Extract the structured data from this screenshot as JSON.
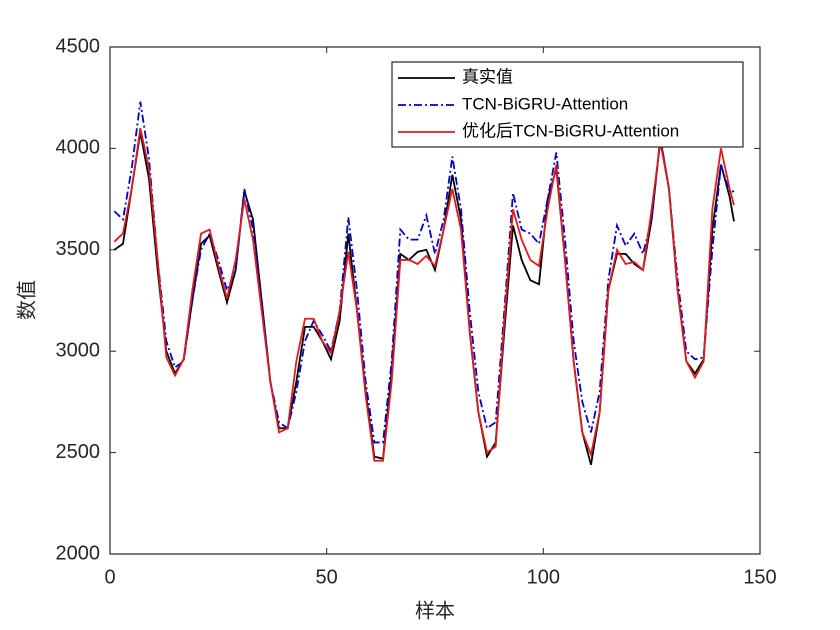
{
  "chart_data": {
    "type": "line",
    "x_label": "样本",
    "y_label": "数值",
    "x": [
      1,
      3,
      5,
      7,
      9,
      11,
      13,
      15,
      17,
      19,
      21,
      23,
      25,
      27,
      29,
      31,
      33,
      35,
      37,
      39,
      41,
      43,
      45,
      47,
      49,
      51,
      53,
      55,
      57,
      59,
      61,
      63,
      65,
      67,
      69,
      71,
      73,
      75,
      77,
      79,
      81,
      83,
      85,
      87,
      89,
      91,
      93,
      95,
      97,
      99,
      101,
      103,
      105,
      107,
      109,
      111,
      113,
      115,
      117,
      119,
      121,
      123,
      125,
      127,
      129,
      131,
      133,
      135,
      137,
      139,
      141,
      143,
      144
    ],
    "series": [
      {
        "name": "真实值",
        "color": "#000000",
        "dash": "none",
        "values": [
          3500,
          3530,
          3800,
          4080,
          3850,
          3400,
          3000,
          2890,
          2960,
          3250,
          3530,
          3570,
          3400,
          3240,
          3400,
          3790,
          3650,
          3250,
          2850,
          2620,
          2620,
          2850,
          3120,
          3120,
          3050,
          2960,
          3150,
          3580,
          3200,
          2800,
          2480,
          2470,
          2900,
          3480,
          3450,
          3490,
          3500,
          3400,
          3600,
          3870,
          3650,
          3100,
          2700,
          2480,
          2550,
          3100,
          3620,
          3450,
          3350,
          3330,
          3750,
          3900,
          3450,
          2950,
          2600,
          2440,
          2700,
          3300,
          3480,
          3480,
          3430,
          3400,
          3650,
          4050,
          3800,
          3300,
          2950,
          2890,
          2960,
          3600,
          3920,
          3760,
          3640
        ]
      },
      {
        "name": "TCN-BiGRU-Attention",
        "color": "#0000cc",
        "dash": "8 3 2 3",
        "values": [
          3690,
          3650,
          3900,
          4230,
          3950,
          3450,
          3050,
          2920,
          2950,
          3250,
          3500,
          3580,
          3450,
          3300,
          3400,
          3800,
          3600,
          3250,
          2850,
          2650,
          2620,
          2800,
          3050,
          3150,
          3080,
          3000,
          3200,
          3660,
          3300,
          2850,
          2550,
          2550,
          2950,
          3600,
          3550,
          3550,
          3670,
          3480,
          3650,
          3960,
          3700,
          3200,
          2800,
          2620,
          2650,
          3200,
          3780,
          3600,
          3580,
          3530,
          3750,
          3980,
          3550,
          3050,
          2750,
          2600,
          2800,
          3350,
          3620,
          3520,
          3580,
          3480,
          3650,
          4050,
          3800,
          3350,
          3000,
          2960,
          2970,
          3500,
          3920,
          3780,
          3790
        ]
      },
      {
        "name": "优化后TCN-BiGRU-Attention",
        "color": "#e01b1b",
        "dash": "none",
        "values": [
          3540,
          3580,
          3800,
          4100,
          3900,
          3450,
          2970,
          2880,
          2960,
          3300,
          3580,
          3600,
          3420,
          3260,
          3450,
          3750,
          3550,
          3200,
          2850,
          2600,
          2620,
          2950,
          3160,
          3160,
          3050,
          2990,
          3200,
          3490,
          3200,
          2780,
          2460,
          2460,
          2850,
          3450,
          3450,
          3430,
          3470,
          3420,
          3600,
          3800,
          3600,
          3100,
          2700,
          2500,
          2530,
          3150,
          3700,
          3550,
          3450,
          3420,
          3700,
          3920,
          3450,
          2950,
          2600,
          2490,
          2700,
          3300,
          3500,
          3430,
          3440,
          3400,
          3700,
          4030,
          3800,
          3300,
          2950,
          2870,
          2950,
          3700,
          4000,
          3800,
          3720
        ]
      }
    ],
    "xlim": [
      0,
      150
    ],
    "xticks": [
      0,
      50,
      100,
      150
    ],
    "ylim": [
      2000,
      4500
    ],
    "yticks": [
      2000,
      2500,
      3000,
      3500,
      4000,
      4500
    ],
    "legend": "upper right"
  }
}
